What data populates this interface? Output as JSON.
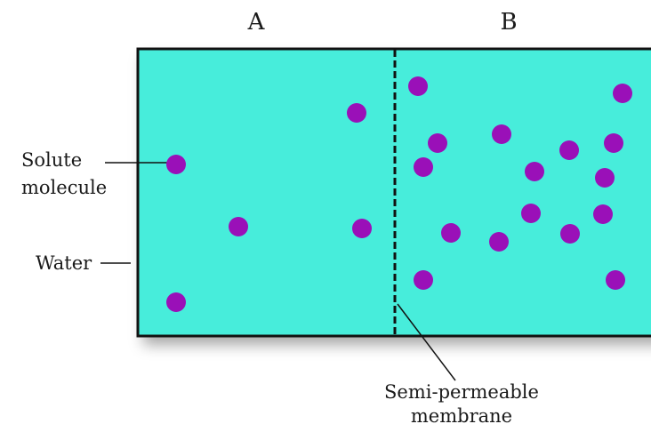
{
  "compartments": {
    "left_label": "A",
    "right_label": "B"
  },
  "labels": {
    "solute_line1": "Solute",
    "solute_line2": "molecule",
    "water": "Water",
    "membrane_line1": "Semi-permeable",
    "membrane_line2": "membrane"
  },
  "colors": {
    "water": "#47eddb",
    "solute": "#9a10b8",
    "border": "#111111"
  }
}
